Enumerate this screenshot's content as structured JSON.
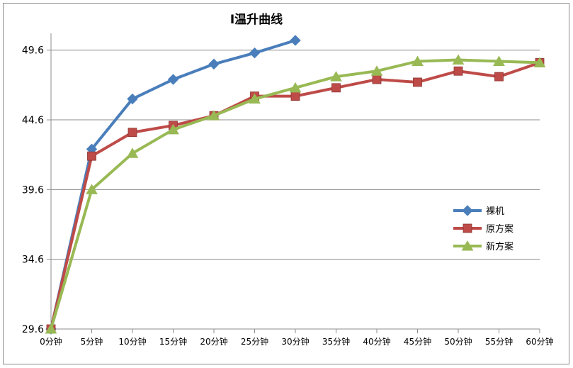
{
  "chart_data": {
    "type": "line",
    "title": "I温升曲线",
    "xlabel": "",
    "ylabel": "",
    "categories": [
      "0分钟",
      "5分钟",
      "10分钟",
      "15分钟",
      "20分钟",
      "25分钟",
      "30分钟",
      "35分钟",
      "40分钟",
      "45分钟",
      "50分钟",
      "55分钟",
      "60分钟"
    ],
    "ylim": [
      29.6,
      50.4
    ],
    "yticks": [
      "29.6",
      "34.6",
      "39.6",
      "44.6",
      "49.6"
    ],
    "grid": true,
    "legend_position": "right",
    "series": [
      {
        "name": "裸机",
        "color": "#4a7ebb",
        "marker": "diamond",
        "values": [
          29.6,
          42.5,
          46.1,
          47.5,
          48.6,
          49.4,
          50.3,
          null,
          null,
          null,
          null,
          null,
          null
        ]
      },
      {
        "name": "原方案",
        "color": "#be4b48",
        "marker": "square",
        "values": [
          29.6,
          42.0,
          43.7,
          44.2,
          44.9,
          46.3,
          46.3,
          46.9,
          47.5,
          47.3,
          48.1,
          47.7,
          48.7
        ]
      },
      {
        "name": "新方案",
        "color": "#98b954",
        "marker": "triangle",
        "values": [
          29.6,
          39.6,
          42.2,
          43.9,
          44.9,
          46.1,
          46.9,
          47.7,
          48.1,
          48.8,
          48.9,
          48.8,
          48.7
        ]
      }
    ]
  }
}
